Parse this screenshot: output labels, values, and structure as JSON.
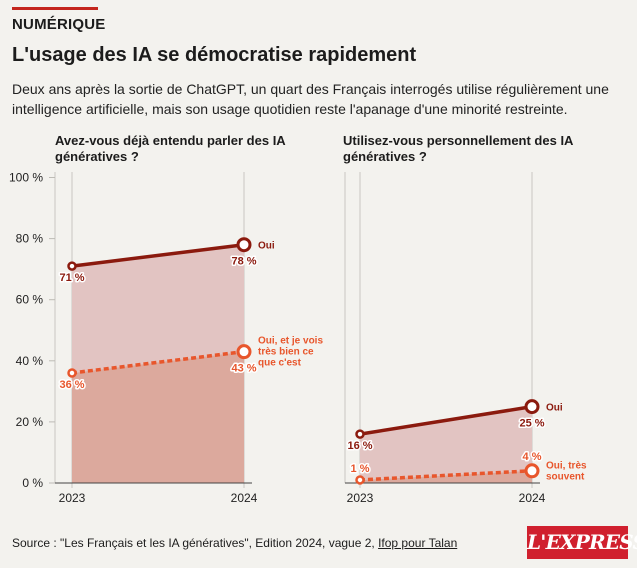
{
  "header": {
    "category": "NUMÉRIQUE",
    "title": "L'usage des IA se démocratise rapidement",
    "subtitle": "Deux ans après la sortie de ChatGPT, un quart des Français interrogés utilise régulièrement une intelligence artificielle, mais son usage quotidien reste l'apanage d'une minorité restreinte."
  },
  "colors": {
    "accent_dark": "#8b1a0e",
    "accent_light": "#e8562c",
    "fill_upper": "#e2c4c2",
    "fill_lower": "#dca99d",
    "background": "#f3f2ee"
  },
  "chart_data": [
    {
      "type": "line",
      "title": "Avez-vous déjà entendu parler des IA génératives ?",
      "x": [
        "2023",
        "2024"
      ],
      "ylim": [
        0,
        100
      ],
      "yticks": [
        "0 %",
        "20 %",
        "40 %",
        "60 %",
        "80 %",
        "100 %"
      ],
      "series": [
        {
          "name": "Oui",
          "values": [
            71,
            78
          ],
          "labels": [
            "71 %",
            "78 %"
          ],
          "style": "solid"
        },
        {
          "name": "Oui, et je vois très bien ce que c'est",
          "name_lines": [
            "Oui, et je vois",
            "très bien ce",
            "que c'est"
          ],
          "values": [
            36,
            43
          ],
          "labels": [
            "36 %",
            "43 %"
          ],
          "style": "dashed"
        }
      ]
    },
    {
      "type": "line",
      "title": "Utilisez-vous personnellement des IA génératives ?",
      "x": [
        "2023",
        "2024"
      ],
      "ylim": [
        0,
        100
      ],
      "series": [
        {
          "name": "Oui",
          "values": [
            16,
            25
          ],
          "labels": [
            "16 %",
            "25 %"
          ],
          "style": "solid"
        },
        {
          "name": "Oui, très souvent",
          "name_lines": [
            "Oui, très",
            "souvent"
          ],
          "values": [
            1,
            4
          ],
          "labels": [
            "1 %",
            "4 %"
          ],
          "style": "dashed"
        }
      ]
    }
  ],
  "footer": {
    "source_prefix": "Source : \"Les Français et les IA génératives\", Edition 2024, vague 2, ",
    "source_link": "Ifop pour Talan"
  },
  "logo": {
    "text": "L'EXPRESS"
  }
}
